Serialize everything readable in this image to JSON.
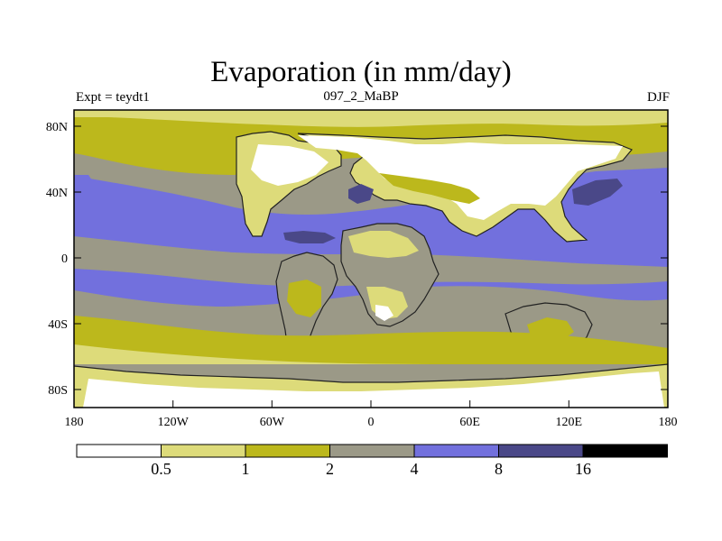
{
  "title": "Evaporation (in mm/day)",
  "left_label": "Expt = teydt1",
  "center_label": "097_2_MaBP",
  "right_label": "DJF",
  "colors": {
    "c0": "#ffffff",
    "c1": "#dddb7a",
    "c2": "#bcb81c",
    "c3": "#9b9987",
    "c4": "#7270dd",
    "c5": "#4a4888",
    "c6": "#000000"
  },
  "axes": {
    "x_ticks": [
      "180",
      "120W",
      "60W",
      "0",
      "60E",
      "120E",
      "180"
    ],
    "y_ticks": [
      "80N",
      "40N",
      "0",
      "40S",
      "80S"
    ]
  },
  "colorbar": {
    "labels": [
      "0.5",
      "1",
      "2",
      "4",
      "8",
      "16"
    ]
  }
}
